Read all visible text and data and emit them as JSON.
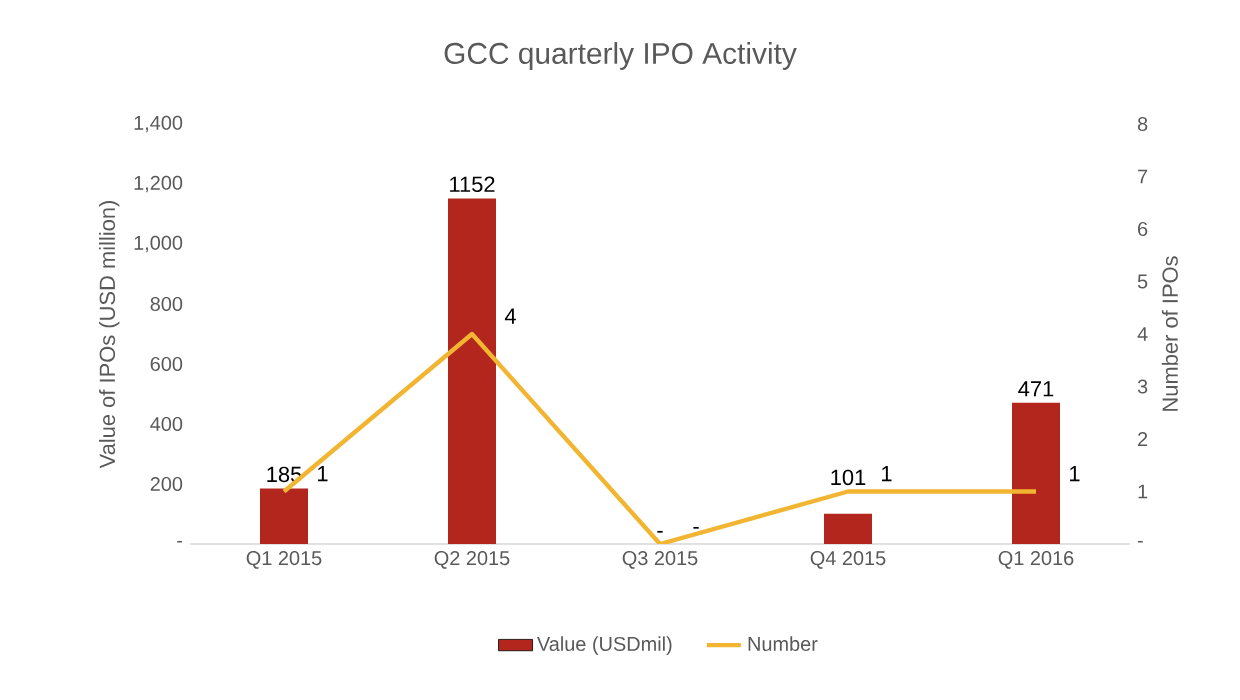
{
  "chart_data": {
    "type": "bar",
    "title": "GCC quarterly IPO Activity",
    "ylabel": "Value of IPOs (USD million)",
    "y2label": "Number of IPOs",
    "categories": [
      "Q1 2015",
      "Q2 2015",
      "Q3 2015",
      "Q4 2015",
      "Q1 2016"
    ],
    "series": [
      {
        "name": "Value  (USDmil)",
        "color": "#b3261e",
        "values": [
          185,
          1152,
          0,
          101,
          471
        ],
        "value_labels": [
          "185",
          "1152",
          "-",
          "101",
          "471"
        ]
      },
      {
        "name": "Number",
        "type": "line",
        "axis": "y2",
        "color": "#f2b531",
        "values": [
          1,
          4,
          0,
          1,
          1
        ],
        "value_labels": [
          "1",
          "4",
          "-",
          "1",
          "1"
        ]
      }
    ],
    "ylim": [
      0,
      1400
    ],
    "yticks": [
      {
        "value": 0,
        "label": "-"
      },
      {
        "value": 200,
        "label": "200"
      },
      {
        "value": 400,
        "label": "400"
      },
      {
        "value": 600,
        "label": "600"
      },
      {
        "value": 800,
        "label": "800"
      },
      {
        "value": 1000,
        "label": "1,000"
      },
      {
        "value": 1200,
        "label": "1,200"
      },
      {
        "value": 1400,
        "label": "1,400"
      }
    ],
    "y2lim": [
      0,
      8
    ],
    "y2ticks": [
      {
        "value": 0,
        "label": "-"
      },
      {
        "value": 1,
        "label": "1"
      },
      {
        "value": 2,
        "label": "2"
      },
      {
        "value": 3,
        "label": "3"
      },
      {
        "value": 4,
        "label": "4"
      },
      {
        "value": 5,
        "label": "5"
      },
      {
        "value": 6,
        "label": "6"
      },
      {
        "value": 7,
        "label": "7"
      },
      {
        "value": 8,
        "label": "8"
      }
    ],
    "grid": false,
    "legend": "bottom"
  }
}
